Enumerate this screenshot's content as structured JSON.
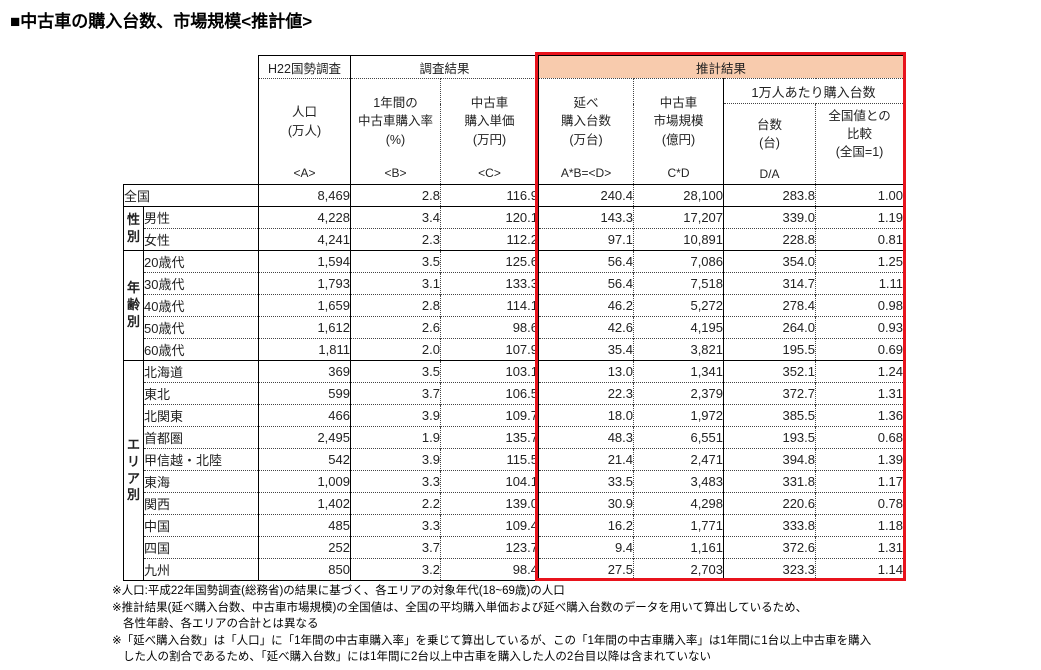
{
  "title": "■中古車の購入台数、市場規模<推計値>",
  "colors": {
    "estimate_border": "#e8131c",
    "estimate_header_bg": "#f8cbad",
    "group_label_text": "#c00000"
  },
  "table": {
    "band": {
      "census": "H22国勢調査",
      "survey": "調査結果",
      "estimate": "推計結果"
    },
    "per10k_header": "1万人あたり購入台数",
    "columns": [
      {
        "label": "人口\n(万人)",
        "code": "<A>"
      },
      {
        "label": "1年間の\n中古車購入率\n(%)",
        "code": "<B>"
      },
      {
        "label": "中古車\n購入単価\n(万円)",
        "code": "<C>"
      },
      {
        "label": "延べ\n購入台数\n(万台)",
        "code": "A*B=<D>"
      },
      {
        "label": "中古車\n市場規模\n(億円)",
        "code": "C*D"
      },
      {
        "label": "台数\n(台)",
        "code": "D/A"
      },
      {
        "label": "全国値との\n比較\n(全国=1)",
        "code": ""
      }
    ],
    "national": {
      "label": "全国",
      "values": [
        "8,469",
        "2.8",
        "116.9",
        "240.4",
        "28,100",
        "283.8",
        "1.00"
      ]
    },
    "groups": [
      {
        "name": "性別",
        "rows": [
          {
            "label": "男性",
            "values": [
              "4,228",
              "3.4",
              "120.1",
              "143.3",
              "17,207",
              "339.0",
              "1.19"
            ]
          },
          {
            "label": "女性",
            "values": [
              "4,241",
              "2.3",
              "112.2",
              "97.1",
              "10,891",
              "228.8",
              "0.81"
            ]
          }
        ]
      },
      {
        "name": "年齢別",
        "rows": [
          {
            "label": "20歳代",
            "values": [
              "1,594",
              "3.5",
              "125.6",
              "56.4",
              "7,086",
              "354.0",
              "1.25"
            ]
          },
          {
            "label": "30歳代",
            "values": [
              "1,793",
              "3.1",
              "133.3",
              "56.4",
              "7,518",
              "314.7",
              "1.11"
            ]
          },
          {
            "label": "40歳代",
            "values": [
              "1,659",
              "2.8",
              "114.1",
              "46.2",
              "5,272",
              "278.4",
              "0.98"
            ]
          },
          {
            "label": "50歳代",
            "values": [
              "1,612",
              "2.6",
              "98.6",
              "42.6",
              "4,195",
              "264.0",
              "0.93"
            ]
          },
          {
            "label": "60歳代",
            "values": [
              "1,811",
              "2.0",
              "107.9",
              "35.4",
              "3,821",
              "195.5",
              "0.69"
            ]
          }
        ]
      },
      {
        "name": "エリア別",
        "rows": [
          {
            "label": "北海道",
            "values": [
              "369",
              "3.5",
              "103.1",
              "13.0",
              "1,341",
              "352.1",
              "1.24"
            ]
          },
          {
            "label": "東北",
            "values": [
              "599",
              "3.7",
              "106.5",
              "22.3",
              "2,379",
              "372.7",
              "1.31"
            ]
          },
          {
            "label": "北関東",
            "values": [
              "466",
              "3.9",
              "109.7",
              "18.0",
              "1,972",
              "385.5",
              "1.36"
            ]
          },
          {
            "label": "首都圏",
            "values": [
              "2,495",
              "1.9",
              "135.7",
              "48.3",
              "6,551",
              "193.5",
              "0.68"
            ]
          },
          {
            "label": "甲信越・北陸",
            "values": [
              "542",
              "3.9",
              "115.5",
              "21.4",
              "2,471",
              "394.8",
              "1.39"
            ]
          },
          {
            "label": "東海",
            "values": [
              "1,009",
              "3.3",
              "104.1",
              "33.5",
              "3,483",
              "331.8",
              "1.17"
            ]
          },
          {
            "label": "関西",
            "values": [
              "1,402",
              "2.2",
              "139.0",
              "30.9",
              "4,298",
              "220.6",
              "0.78"
            ]
          },
          {
            "label": "中国",
            "values": [
              "485",
              "3.3",
              "109.4",
              "16.2",
              "1,771",
              "333.8",
              "1.18"
            ]
          },
          {
            "label": "四国",
            "values": [
              "252",
              "3.7",
              "123.7",
              "9.4",
              "1,161",
              "372.6",
              "1.31"
            ]
          },
          {
            "label": "九州",
            "values": [
              "850",
              "3.2",
              "98.4",
              "27.5",
              "2,703",
              "323.3",
              "1.14"
            ]
          }
        ]
      }
    ]
  },
  "footnotes": [
    "※人口:平成22年国勢調査(総務省)の結果に基づく、各エリアの対象年代(18~69歳)の人口",
    "※推計結果(延べ購入台数、中古車市場規模)の全国値は、全国の平均購入単価および延べ購入台数のデータを用いて算出しているため、",
    "各性年齢、各エリアの合計とは異なる",
    "※「延べ購入台数」は「人口」に「1年間の中古車購入率」を乗じて算出しているが、この「1年間の中古車購入率」は1年間に1台以上中古車を購入",
    "した人の割合であるため、「延べ購入台数」には1年間に2台以上中古車を購入した人の2台目以降は含まれていない"
  ]
}
